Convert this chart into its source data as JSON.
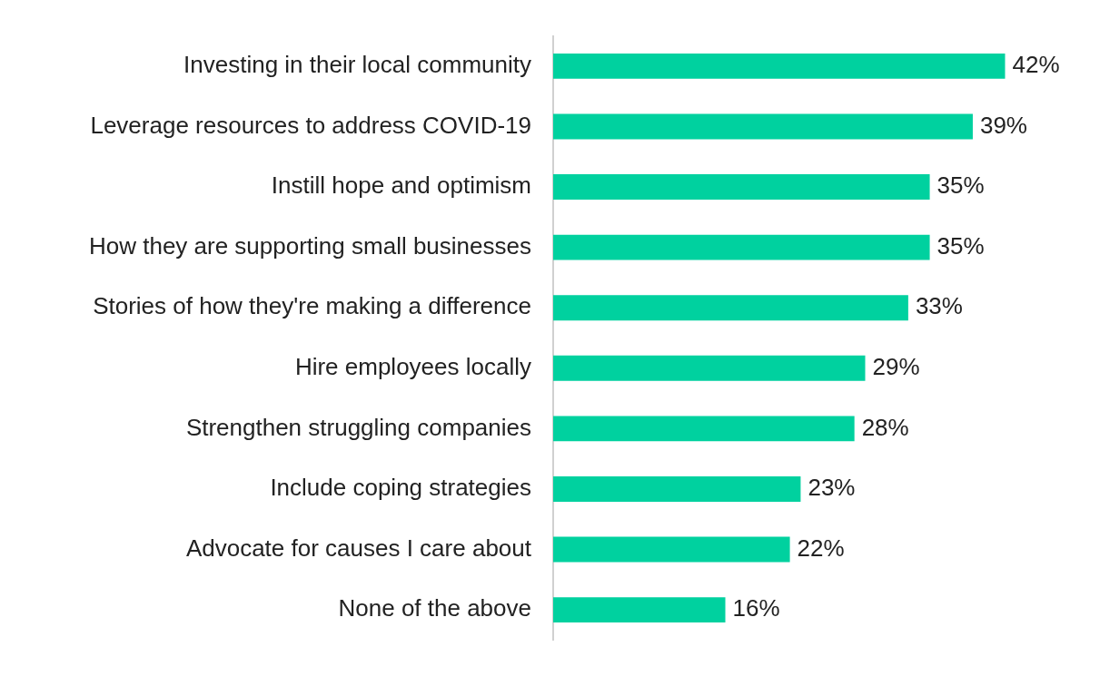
{
  "chart_data": {
    "type": "bar",
    "orientation": "horizontal",
    "categories": [
      "Investing in their local community",
      "Leverage resources to address COVID-19",
      "Instill hope and optimism",
      "How they are supporting small businesses",
      "Stories of how they're making a difference",
      "Hire employees locally",
      "Strengthen struggling companies",
      "Include coping strategies",
      "Advocate for causes I care about",
      "None of the above"
    ],
    "values": [
      42,
      39,
      35,
      35,
      33,
      29,
      28,
      23,
      22,
      16
    ],
    "value_labels": [
      "42%",
      "39%",
      "35%",
      "35%",
      "33%",
      "29%",
      "28%",
      "23%",
      "22%",
      "16%"
    ],
    "color": "#00d19f",
    "grid": false,
    "legend": false
  }
}
